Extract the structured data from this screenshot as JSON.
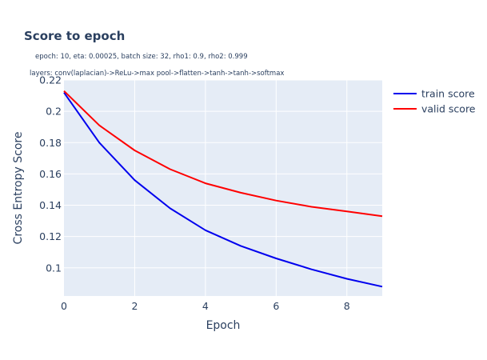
{
  "chart_data": {
    "type": "line",
    "title": "Score to epoch",
    "subtitle_lines": [
      "epoch: 10, eta: 0.00025, batch size: 32, rho1: 0.9, rho2: 0.999",
      "layers: conv(laplacian)->ReLu->max pool->flatten->tanh->tanh->softmax"
    ],
    "xlabel": "Epoch",
    "ylabel": "Cross Entropy  Score",
    "xlim": [
      0,
      9
    ],
    "ylim": [
      0.082,
      0.22
    ],
    "xticks": [
      0,
      2,
      4,
      6,
      8
    ],
    "yticks": [
      0.1,
      0.12,
      0.14,
      0.16,
      0.18,
      0.2,
      0.22
    ],
    "ytick_labels": [
      "0.1",
      "0.12",
      "0.14",
      "0.16",
      "0.18",
      "0.2",
      "0.22"
    ],
    "grid": true,
    "legend_position": "top-right",
    "x": [
      0,
      1,
      2,
      3,
      4,
      5,
      6,
      7,
      8,
      9
    ],
    "series": [
      {
        "name": "train score",
        "color": "#0000ee",
        "values": [
          0.212,
          0.18,
          0.156,
          0.138,
          0.124,
          0.114,
          0.106,
          0.099,
          0.093,
          0.088
        ]
      },
      {
        "name": "valid score",
        "color": "#ff0000",
        "values": [
          0.213,
          0.191,
          0.175,
          0.163,
          0.154,
          0.148,
          0.143,
          0.139,
          0.136,
          0.133
        ]
      }
    ]
  },
  "colors": {
    "plot_bg": "#e5ecf6",
    "grid": "#ffffff",
    "text": "#2a3f5f"
  }
}
